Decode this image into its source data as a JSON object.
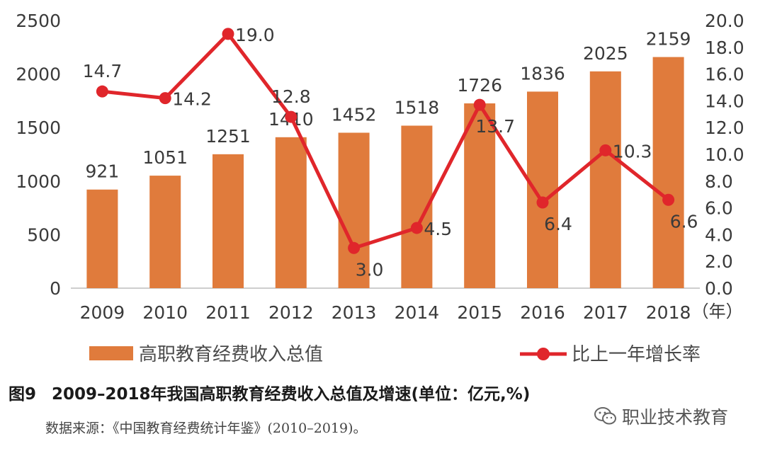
{
  "chart_data": {
    "type": "bar+line",
    "categories": [
      "2009",
      "2010",
      "2011",
      "2012",
      "2013",
      "2014",
      "2015",
      "2016",
      "2017",
      "2018"
    ],
    "x_unit": "（年）",
    "series": [
      {
        "name": "高职教育经费收入总值",
        "type": "bar",
        "axis": "left",
        "color": "#E07B3C",
        "values": [
          921,
          1051,
          1251,
          1410,
          1452,
          1518,
          1726,
          1836,
          2025,
          2159
        ],
        "labels": [
          "921",
          "1051",
          "1251",
          "1410",
          "1452",
          "1518",
          "1726",
          "1836",
          "2025",
          "2159"
        ]
      },
      {
        "name": "比上一年增长率",
        "type": "line",
        "axis": "right",
        "color": "#E0262B",
        "values": [
          14.7,
          14.2,
          19.0,
          12.8,
          3.0,
          4.5,
          13.7,
          6.4,
          10.3,
          6.6
        ],
        "labels": [
          "14.7",
          "14.2",
          "19.0",
          "12.8",
          "3.0",
          "4.5",
          "13.7",
          "6.4",
          "10.3",
          "6.6"
        ]
      }
    ],
    "y_left": {
      "range": [
        0,
        2500
      ],
      "ticks": [
        "0",
        "500",
        "1000",
        "1500",
        "2000",
        "2500"
      ]
    },
    "y_right": {
      "range": [
        0,
        20
      ],
      "ticks": [
        "0.0",
        "2.0",
        "4.0",
        "6.0",
        "8.0",
        "10.0",
        "12.0",
        "14.0",
        "16.0",
        "18.0",
        "20.0"
      ]
    },
    "grid": false,
    "legend_position": "bottom"
  },
  "caption": {
    "figure_no": "图9",
    "text": "2009–2018年我国高职教育经费收入总值及增速(单位：亿元,%)"
  },
  "source": "数据来源：《中国教育经费统计年鉴》(2010–2019)。",
  "watermark": {
    "text": "职业技术教育",
    "icon": "wechat-icon"
  }
}
